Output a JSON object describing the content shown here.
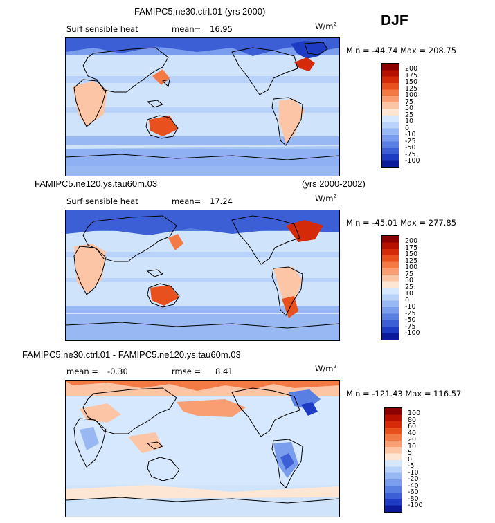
{
  "season": "DJF",
  "panels": [
    {
      "title": "FAMIPC5.ne30.ctrl.01 (yrs 2000)",
      "variable": "Surf sensible heat",
      "mean_label": "mean=",
      "mean_value": "16.95",
      "units": "W/m",
      "units_sup": "2",
      "min_max": "Min = -44.74 Max = 208.75",
      "colorbar_ticks": [
        "200",
        "175",
        "150",
        "125",
        "100",
        "75",
        "50",
        "25",
        "10",
        "0",
        "-10",
        "-25",
        "-50",
        "-75",
        "-100"
      ]
    },
    {
      "title": "FAMIPC5.ne120.ys.tau60m.03",
      "title_right": "(yrs 2000-2002)",
      "variable": "Surf sensible heat",
      "mean_label": "mean=",
      "mean_value": "17.24",
      "units": "W/m",
      "units_sup": "2",
      "min_max": "Min = -45.01 Max = 277.85",
      "colorbar_ticks": [
        "200",
        "175",
        "150",
        "125",
        "100",
        "75",
        "50",
        "25",
        "10",
        "0",
        "-10",
        "-25",
        "-50",
        "-75",
        "-100"
      ]
    },
    {
      "title": "FAMIPC5.ne30.ctrl.01 - FAMIPC5.ne120.ys.tau60m.03",
      "mean_label": "mean =",
      "mean_value": "-0.30",
      "rmse_label": "rmse =",
      "rmse_value": "8.41",
      "units": "W/m",
      "units_sup": "2",
      "min_max": "Min = -121.43 Max = 116.57",
      "colorbar_ticks": [
        "100",
        "80",
        "60",
        "40",
        "20",
        "10",
        "5",
        "0",
        "-5",
        "-10",
        "-20",
        "-40",
        "-60",
        "-80",
        "-100"
      ]
    }
  ],
  "colors": {
    "main_scale": [
      "#8c0000",
      "#b51000",
      "#d42a0a",
      "#e8501e",
      "#f47a45",
      "#f99e72",
      "#fcc5a6",
      "#fde6d4",
      "#d6e8fd",
      "#b8d2fa",
      "#98b8f4",
      "#7a9ded",
      "#5a7fe3",
      "#3c5fd6",
      "#1e3cc3",
      "#0a1a9a"
    ],
    "ocean_base": "#cfe3fb",
    "land_outline": "#000000"
  }
}
